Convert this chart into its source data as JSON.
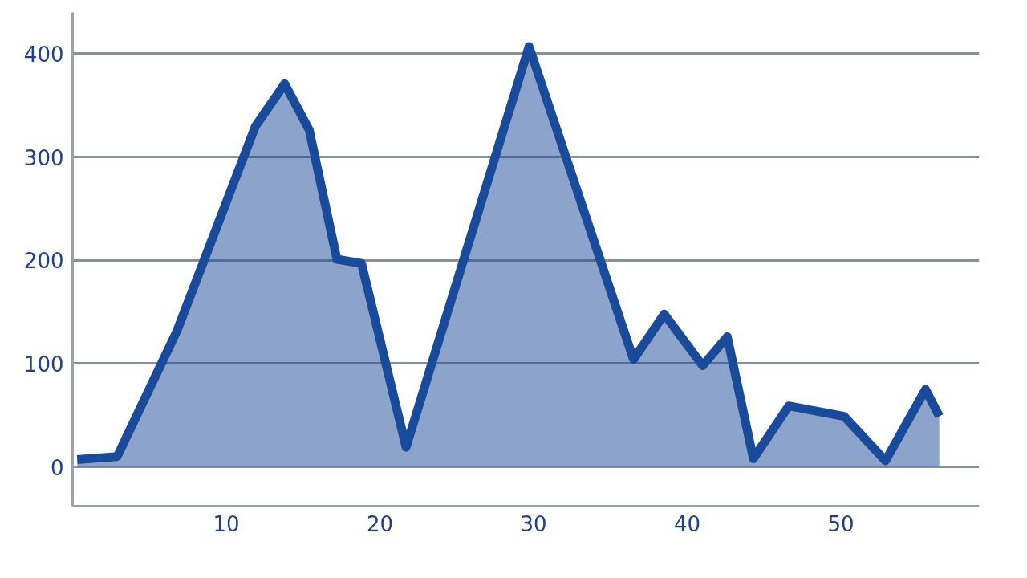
{
  "chart_data": {
    "type": "area",
    "x": [
      0.3,
      2.9,
      6.8,
      11.9,
      13.8,
      15.4,
      17.2,
      18.8,
      21.7,
      29.7,
      36.5,
      38.5,
      41.0,
      42.6,
      44.3,
      46.6,
      50.2,
      52.9,
      55.5,
      56.4
    ],
    "series": [
      {
        "color": "#1a4a9a",
        "values": [
          7,
          10,
          132,
          330,
          371,
          326,
          201,
          197,
          19,
          407,
          104,
          148,
          98,
          126,
          8,
          59,
          49,
          6,
          75,
          49
        ]
      }
    ],
    "xlim": [
      0,
      59
    ],
    "xticks": [
      10,
      20,
      30,
      40,
      50
    ],
    "ylim": [
      -38,
      440
    ],
    "yticks": [
      0,
      100,
      200,
      300,
      400
    ],
    "grid": "y"
  }
}
